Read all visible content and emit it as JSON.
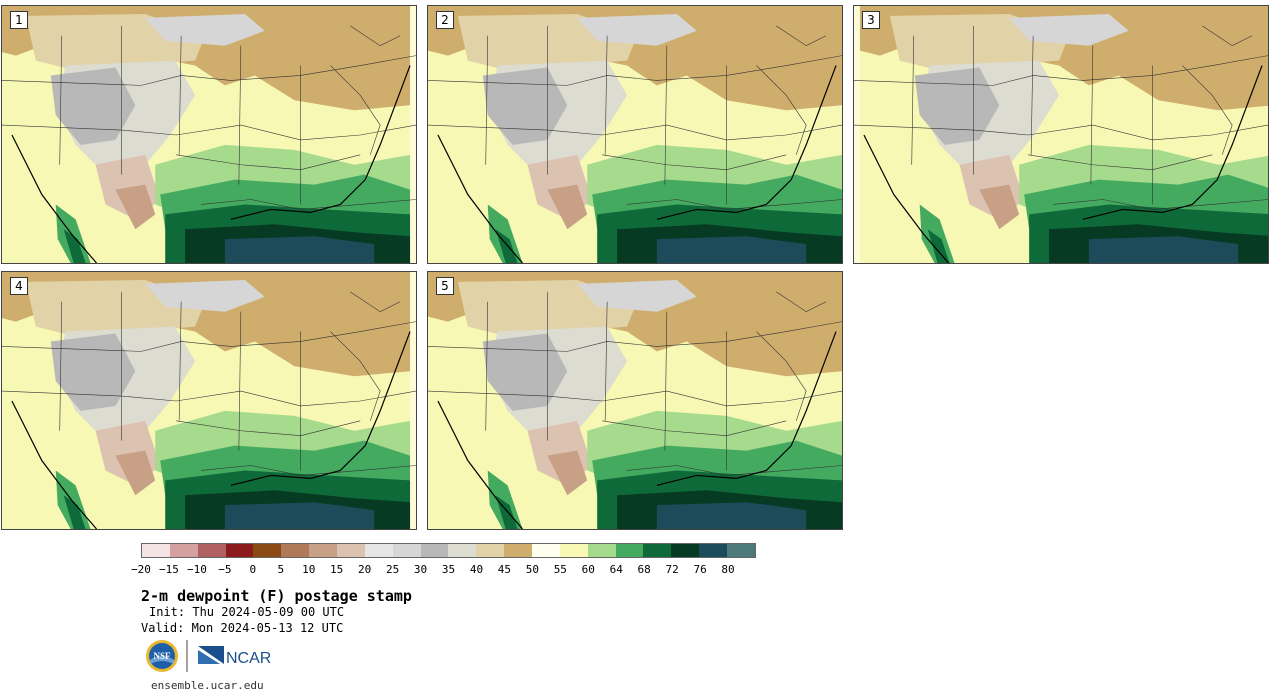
{
  "panels": [
    {
      "label": "1"
    },
    {
      "label": "2"
    },
    {
      "label": "3"
    },
    {
      "label": "4"
    },
    {
      "label": "5"
    }
  ],
  "colorbar": {
    "colors": [
      "#f4e4e4",
      "#d4a0a0",
      "#b06060",
      "#8c1c1c",
      "#8a4a16",
      "#b07a58",
      "#c8a086",
      "#dcc2b0",
      "#e6e6e6",
      "#d6d6d6",
      "#b8b8b8",
      "#dcdcd0",
      "#e2d2a8",
      "#cfad6c",
      "#fffff0",
      "#f6f8b4",
      "#a6da8c",
      "#44aa60",
      "#0e6a38",
      "#063a22",
      "#1c4c5a",
      "#4e7a7c"
    ],
    "ticks": [
      "−20",
      "−15",
      "−10",
      "−5",
      "0",
      "5",
      "10",
      "15",
      "20",
      "25",
      "30",
      "35",
      "40",
      "45",
      "50",
      "55",
      "60",
      "64",
      "68",
      "72",
      "76",
      "80"
    ]
  },
  "title": "2-m dewpoint (F) postage stamp",
  "init": "Init: Thu 2024-05-09 00 UTC",
  "valid": "Valid: Mon 2024-05-13 12 UTC",
  "logos": {
    "nsf": "NSF",
    "ncar": "NCAR"
  },
  "website": "ensemble.ucar.edu"
}
